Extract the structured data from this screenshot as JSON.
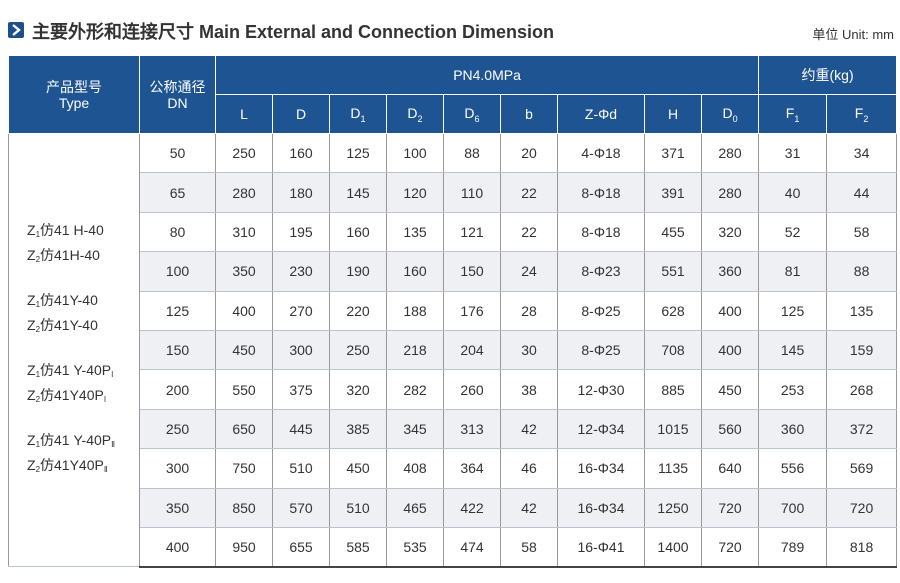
{
  "header": {
    "title": "主要外形和连接尺寸 Main External and Connection Dimension",
    "unit": "单位 Unit: mm",
    "accent": "#1f5493"
  },
  "table": {
    "type_header_cn": "产品型号",
    "type_header_en": "Type",
    "dn_header_cn": "公称通径",
    "dn_header_en": "DN",
    "pressure_header": "PN4.0MPa",
    "weight_header": "约重(kg)",
    "cols": [
      {
        "main": "L",
        "sub": ""
      },
      {
        "main": "D",
        "sub": ""
      },
      {
        "main": "D",
        "sub": "1"
      },
      {
        "main": "D",
        "sub": "2"
      },
      {
        "main": "D",
        "sub": "6"
      },
      {
        "main": "b",
        "sub": ""
      },
      {
        "main": "Z-Φd",
        "sub": ""
      },
      {
        "main": "H",
        "sub": ""
      },
      {
        "main": "D",
        "sub": "0"
      },
      {
        "main": "F",
        "sub": "1"
      },
      {
        "main": "F",
        "sub": "2"
      }
    ],
    "types": [
      {
        "prefix": "Z",
        "sub": "1",
        "body": "仿41 H-40",
        "suffix_sub": ""
      },
      {
        "prefix": "Z",
        "sub": "2",
        "body": "仿41H-40",
        "suffix_sub": ""
      },
      {
        "prefix": "Z",
        "sub": "1",
        "body": "仿41Y-40",
        "suffix_sub": ""
      },
      {
        "prefix": "Z",
        "sub": "2",
        "body": "仿41Y-40",
        "suffix_sub": ""
      },
      {
        "prefix": "Z",
        "sub": "1",
        "body": "仿41 Y-40P",
        "suffix_sub": "I"
      },
      {
        "prefix": "Z",
        "sub": "2",
        "body": "仿41Y40P",
        "suffix_sub": "I"
      },
      {
        "prefix": "Z",
        "sub": "1",
        "body": "仿41 Y-40P",
        "suffix_sub": "Ⅱ"
      },
      {
        "prefix": "Z",
        "sub": "2",
        "body": "仿41Y40P",
        "suffix_sub": "Ⅱ"
      }
    ],
    "rows": [
      [
        "50",
        "250",
        "160",
        "125",
        "100",
        "88",
        "20",
        "4-Φ18",
        "371",
        "280",
        "31",
        "34"
      ],
      [
        "65",
        "280",
        "180",
        "145",
        "120",
        "110",
        "22",
        "8-Φ18",
        "391",
        "280",
        "40",
        "44"
      ],
      [
        "80",
        "310",
        "195",
        "160",
        "135",
        "121",
        "22",
        "8-Φ18",
        "455",
        "320",
        "52",
        "58"
      ],
      [
        "100",
        "350",
        "230",
        "190",
        "160",
        "150",
        "24",
        "8-Φ23",
        "551",
        "360",
        "81",
        "88"
      ],
      [
        "125",
        "400",
        "270",
        "220",
        "188",
        "176",
        "28",
        "8-Φ25",
        "628",
        "400",
        "125",
        "135"
      ],
      [
        "150",
        "450",
        "300",
        "250",
        "218",
        "204",
        "30",
        "8-Φ25",
        "708",
        "400",
        "145",
        "159"
      ],
      [
        "200",
        "550",
        "375",
        "320",
        "282",
        "260",
        "38",
        "12-Φ30",
        "885",
        "450",
        "253",
        "268"
      ],
      [
        "250",
        "650",
        "445",
        "385",
        "345",
        "313",
        "42",
        "12-Φ34",
        "1015",
        "560",
        "360",
        "372"
      ],
      [
        "300",
        "750",
        "510",
        "450",
        "408",
        "364",
        "46",
        "16-Φ34",
        "1135",
        "640",
        "556",
        "569"
      ],
      [
        "350",
        "850",
        "570",
        "510",
        "465",
        "422",
        "42",
        "16-Φ34",
        "1250",
        "720",
        "700",
        "720"
      ],
      [
        "400",
        "950",
        "655",
        "585",
        "535",
        "474",
        "58",
        "16-Φ41",
        "1400",
        "720",
        "789",
        "818"
      ]
    ]
  }
}
